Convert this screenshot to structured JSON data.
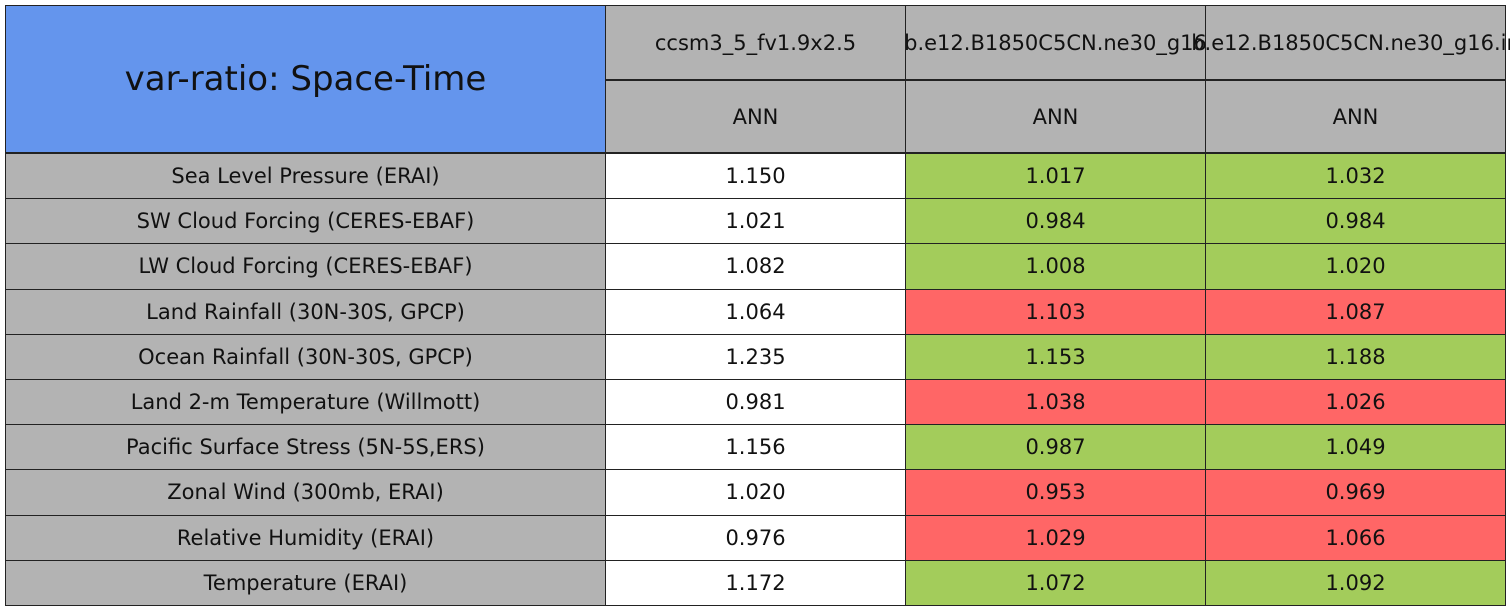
{
  "table": {
    "title": "var-ratio: Space-Time",
    "columns": [
      {
        "name": "ccsm3_5_fv1.9x2.5",
        "season": "ANN"
      },
      {
        "name": "b.e12.B1850C5CN.ne30_g16",
        "season": "ANN"
      },
      {
        "name": "b.e12.B1850C5CN.ne30_g16.in",
        "season": "ANN"
      }
    ],
    "rows": [
      {
        "label": "Sea Level Pressure (ERAI)",
        "cells": [
          {
            "value": "1.150",
            "color": "#ffffff"
          },
          {
            "value": "1.017",
            "color": "#a3cc5b"
          },
          {
            "value": "1.032",
            "color": "#a3cc5b"
          }
        ]
      },
      {
        "label": "SW Cloud Forcing (CERES-EBAF)",
        "cells": [
          {
            "value": "1.021",
            "color": "#ffffff"
          },
          {
            "value": "0.984",
            "color": "#a3cc5b"
          },
          {
            "value": "0.984",
            "color": "#a3cc5b"
          }
        ]
      },
      {
        "label": "LW Cloud Forcing (CERES-EBAF)",
        "cells": [
          {
            "value": "1.082",
            "color": "#ffffff"
          },
          {
            "value": "1.008",
            "color": "#a3cc5b"
          },
          {
            "value": "1.020",
            "color": "#a3cc5b"
          }
        ]
      },
      {
        "label": "Land Rainfall (30N-30S, GPCP)",
        "cells": [
          {
            "value": "1.064",
            "color": "#ffffff"
          },
          {
            "value": "1.103",
            "color": "#ff6666"
          },
          {
            "value": "1.087",
            "color": "#ff6666"
          }
        ]
      },
      {
        "label": "Ocean Rainfall (30N-30S, GPCP)",
        "cells": [
          {
            "value": "1.235",
            "color": "#ffffff"
          },
          {
            "value": "1.153",
            "color": "#a3cc5b"
          },
          {
            "value": "1.188",
            "color": "#a3cc5b"
          }
        ]
      },
      {
        "label": "Land 2-m Temperature (Willmott)",
        "cells": [
          {
            "value": "0.981",
            "color": "#ffffff"
          },
          {
            "value": "1.038",
            "color": "#ff6666"
          },
          {
            "value": "1.026",
            "color": "#ff6666"
          }
        ]
      },
      {
        "label": "Pacific Surface Stress (5N-5S,ERS)",
        "cells": [
          {
            "value": "1.156",
            "color": "#ffffff"
          },
          {
            "value": "0.987",
            "color": "#a3cc5b"
          },
          {
            "value": "1.049",
            "color": "#a3cc5b"
          }
        ]
      },
      {
        "label": "Zonal Wind (300mb, ERAI)",
        "cells": [
          {
            "value": "1.020",
            "color": "#ffffff"
          },
          {
            "value": "0.953",
            "color": "#ff6666"
          },
          {
            "value": "0.969",
            "color": "#ff6666"
          }
        ]
      },
      {
        "label": "Relative Humidity (ERAI)",
        "cells": [
          {
            "value": "0.976",
            "color": "#ffffff"
          },
          {
            "value": "1.029",
            "color": "#ff6666"
          },
          {
            "value": "1.066",
            "color": "#ff6666"
          }
        ]
      },
      {
        "label": "Temperature (ERAI)",
        "cells": [
          {
            "value": "1.172",
            "color": "#ffffff"
          },
          {
            "value": "1.072",
            "color": "#a3cc5b"
          },
          {
            "value": "1.092",
            "color": "#a3cc5b"
          }
        ]
      }
    ]
  }
}
